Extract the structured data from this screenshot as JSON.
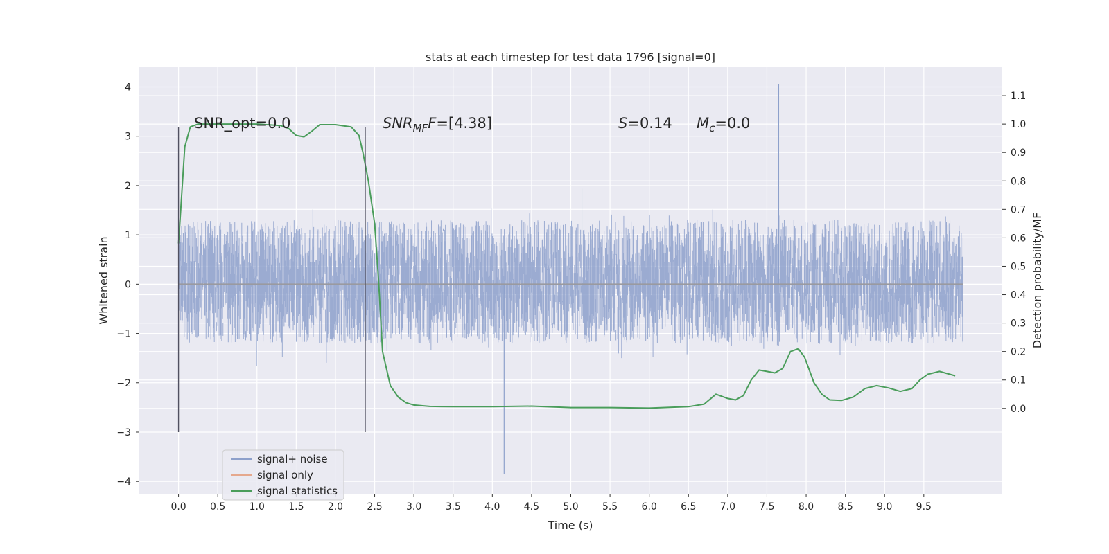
{
  "chart_data": {
    "type": "line",
    "title": "stats at each timestep for test data 1796 [signal=0]",
    "xlabel": "Time (s)",
    "ylabel": "Whitened strain",
    "y2label": "Detection probability/MF",
    "xlim": [
      -0.5,
      10.5
    ],
    "ylim": [
      -4.25,
      4.4
    ],
    "y2lim": [
      -0.3,
      1.2
    ],
    "x_ticks": [
      "0.0",
      "0.5",
      "1.0",
      "1.5",
      "2.0",
      "2.5",
      "3.0",
      "3.5",
      "4.0",
      "4.5",
      "5.0",
      "5.5",
      "6.0",
      "6.5",
      "7.0",
      "7.5",
      "8.0",
      "8.5",
      "9.0",
      "9.5"
    ],
    "y_ticks": [
      "4",
      "3",
      "2",
      "1",
      "0",
      "−1",
      "−2",
      "−3",
      "−4"
    ],
    "y2_ticks": [
      "1.1",
      "1.0",
      "0.9",
      "0.8",
      "0.7",
      "0.6",
      "0.5",
      "0.4",
      "0.3",
      "0.2",
      "0.1",
      "0.0"
    ],
    "grid": true,
    "legend_position": "lower-left",
    "legend": [
      {
        "label": "signal+ noise",
        "color": "#8da0cb"
      },
      {
        "label": "signal only",
        "color": "#e5a88d"
      },
      {
        "label": "signal statistics",
        "color": "#4a9d5b"
      }
    ],
    "annotations": {
      "snr_opt": "SNR_opt=0.0",
      "snr_mf_main": "SNR",
      "snr_mf_sub": "MF",
      "snr_mf_value": "=[4.38]",
      "s_label": "S",
      "s_value": "=0.14",
      "mc_main": "M",
      "mc_sub": "c",
      "mc_value": "=0.0"
    },
    "vertical_markers_x": [
      0.0,
      2.38
    ],
    "series": [
      {
        "name": "signal+ noise",
        "axis": "left",
        "x_range": [
          0.0,
          10.0
        ],
        "typical_band": [
          -1.2,
          1.3
        ],
        "peak_max": 4.05,
        "peak_min": -3.85
      },
      {
        "name": "signal only",
        "axis": "left",
        "x": [
          0.0,
          10.0
        ],
        "y": [
          0.0,
          0.0
        ]
      },
      {
        "name": "signal statistics",
        "axis": "right",
        "x": [
          0.0,
          0.08,
          0.15,
          0.25,
          0.5,
          1.0,
          1.3,
          1.4,
          1.5,
          1.6,
          1.7,
          1.8,
          2.0,
          2.2,
          2.3,
          2.35,
          2.42,
          2.5,
          2.55,
          2.6,
          2.7,
          2.8,
          2.9,
          3.0,
          3.2,
          3.5,
          4.0,
          4.5,
          5.0,
          5.5,
          6.0,
          6.5,
          6.7,
          6.85,
          7.0,
          7.1,
          7.2,
          7.3,
          7.4,
          7.5,
          7.6,
          7.7,
          7.8,
          7.9,
          7.98,
          8.1,
          8.2,
          8.3,
          8.45,
          8.6,
          8.75,
          8.9,
          9.05,
          9.2,
          9.35,
          9.45,
          9.55,
          9.7,
          9.9
        ],
        "y": [
          0.58,
          0.92,
          0.99,
          1.0,
          1.0,
          1.0,
          0.995,
          0.985,
          0.96,
          0.955,
          0.975,
          0.998,
          0.998,
          0.99,
          0.96,
          0.9,
          0.8,
          0.65,
          0.45,
          0.2,
          0.08,
          0.04,
          0.02,
          0.012,
          0.007,
          0.006,
          0.006,
          0.008,
          0.003,
          0.003,
          0.001,
          0.006,
          0.015,
          0.05,
          0.035,
          0.03,
          0.045,
          0.1,
          0.135,
          0.13,
          0.125,
          0.14,
          0.2,
          0.21,
          0.18,
          0.09,
          0.05,
          0.03,
          0.028,
          0.04,
          0.07,
          0.08,
          0.072,
          0.06,
          0.07,
          0.1,
          0.12,
          0.13,
          0.115
        ]
      }
    ]
  }
}
